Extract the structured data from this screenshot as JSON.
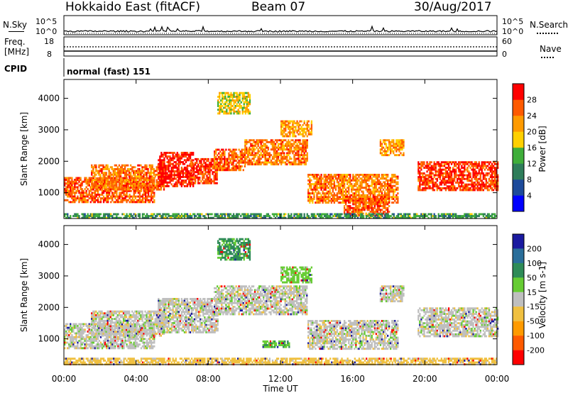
{
  "header": {
    "radar": "Hokkaido East (fitACF)",
    "beam": "Beam 07",
    "date": "30/Aug/2017"
  },
  "top_panels": {
    "nsky_label": "N.Sky",
    "nsky_ticks": [
      "10^5",
      "10^0"
    ],
    "nsearch_label": "N.Search",
    "nsearch_ticks": [
      "10^5",
      "10^0"
    ],
    "freq_label_1": "Freq.",
    "freq_label_2": "[MHz]",
    "freq_ticks": [
      "18",
      "8"
    ],
    "nave_label": "Nave",
    "nave_ticks": [
      "60",
      "0"
    ],
    "cpid_label": "CPID",
    "cpid_value": "normal (fast) 151"
  },
  "chart_data": [
    {
      "type": "heatmap",
      "name": "power",
      "ylabel": "Slant Range [km]",
      "xlabel": "Time UT",
      "x_ticks": [
        "00:00",
        "04:00",
        "08:00",
        "12:00",
        "16:00",
        "20:00",
        "00:00"
      ],
      "y_ticks": [
        1000,
        2000,
        3000,
        4000
      ],
      "ylim": [
        180,
        4600
      ],
      "colorbar": {
        "label": "Power [dB]",
        "ticks": [
          4,
          8,
          12,
          16,
          20,
          24,
          28
        ],
        "colors": [
          "#0000ff",
          "#1d4a9a",
          "#2e7d5a",
          "#3fae3a",
          "#ffd000",
          "#ff9a00",
          "#ff5a00",
          "#ff0000"
        ]
      },
      "bands": [
        {
          "t0": 0.0,
          "t1": 5.0,
          "r0": 700,
          "r1": 1500,
          "v": 26
        },
        {
          "t0": 1.5,
          "t1": 5.5,
          "r0": 1100,
          "r1": 1900,
          "v": 24
        },
        {
          "t0": 5.2,
          "t1": 7.2,
          "r0": 1200,
          "r1": 2300,
          "v": 30
        },
        {
          "t0": 7.0,
          "t1": 8.5,
          "r0": 1300,
          "r1": 2100,
          "v": 28
        },
        {
          "t0": 8.3,
          "t1": 10.0,
          "r0": 1700,
          "r1": 2400,
          "v": 26
        },
        {
          "t0": 10.0,
          "t1": 13.5,
          "r0": 1900,
          "r1": 2700,
          "v": 24
        },
        {
          "t0": 12.0,
          "t1": 13.7,
          "r0": 2800,
          "r1": 3300,
          "v": 22
        },
        {
          "t0": 13.5,
          "t1": 18.5,
          "r0": 700,
          "r1": 1600,
          "v": 24
        },
        {
          "t0": 15.5,
          "t1": 18.0,
          "r0": 300,
          "r1": 900,
          "v": 26
        },
        {
          "t0": 17.5,
          "t1": 18.8,
          "r0": 2200,
          "r1": 2700,
          "v": 22
        },
        {
          "t0": 19.6,
          "t1": 24.0,
          "r0": 1100,
          "r1": 2000,
          "v": 28
        },
        {
          "t0": 8.5,
          "t1": 10.3,
          "r0": 3500,
          "r1": 4200,
          "v": 18
        },
        {
          "t0": 0.0,
          "t1": 24.0,
          "r0": 180,
          "r1": 350,
          "v": 12
        }
      ]
    },
    {
      "type": "heatmap",
      "name": "velocity",
      "ylabel": "Slant Range [km]",
      "xlabel": "Time UT",
      "x_ticks": [
        "00:00",
        "04:00",
        "08:00",
        "12:00",
        "16:00",
        "20:00",
        "00:00"
      ],
      "y_ticks": [
        1000,
        2000,
        3000,
        4000
      ],
      "ylim": [
        180,
        4600
      ],
      "colorbar": {
        "label": "Velocity [m s-1]",
        "ticks": [
          200,
          100,
          50,
          15,
          -15,
          -50,
          -100,
          -200
        ],
        "colors": [
          "#1a1aa0",
          "#2a6e9a",
          "#2e8b57",
          "#66cc33",
          "#bfbfbf",
          "#f0c040",
          "#ff9a00",
          "#ff5a00",
          "#ff0000"
        ]
      },
      "bands": [
        {
          "t0": 0.0,
          "t1": 5.0,
          "r0": 700,
          "r1": 1500,
          "v": 0
        },
        {
          "t0": 1.5,
          "t1": 5.5,
          "r0": 1100,
          "r1": 1900,
          "v": 0
        },
        {
          "t0": 5.2,
          "t1": 8.5,
          "r0": 1200,
          "r1": 2300,
          "v": 0
        },
        {
          "t0": 8.3,
          "t1": 13.5,
          "r0": 1800,
          "r1": 2700,
          "v": 0
        },
        {
          "t0": 12.0,
          "t1": 13.7,
          "r0": 2800,
          "r1": 3300,
          "v": 30
        },
        {
          "t0": 13.5,
          "t1": 18.5,
          "r0": 700,
          "r1": 1600,
          "v": 0
        },
        {
          "t0": 11.0,
          "t1": 12.5,
          "r0": 750,
          "r1": 950,
          "v": 40
        },
        {
          "t0": 17.5,
          "t1": 18.8,
          "r0": 2200,
          "r1": 2700,
          "v": 0
        },
        {
          "t0": 19.6,
          "t1": 24.0,
          "r0": 1100,
          "r1": 2000,
          "v": 0
        },
        {
          "t0": 0.0,
          "t1": 24.0,
          "r0": 180,
          "r1": 400,
          "v": -30
        },
        {
          "t0": 8.5,
          "t1": 10.3,
          "r0": 3500,
          "r1": 4200,
          "v": 60
        }
      ]
    }
  ]
}
